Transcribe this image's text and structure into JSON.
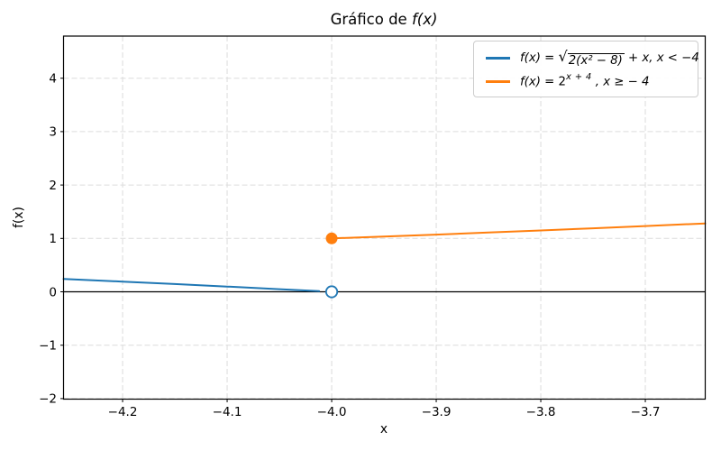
{
  "figure": {
    "title": {
      "prefix": "Gráfico de ",
      "math": "f(x)"
    },
    "xlabel": "x",
    "ylabel": "f(x)"
  },
  "chart_data": {
    "type": "line",
    "title": "Gráfico de f(x)",
    "xlabel": "x",
    "ylabel": "f(x)",
    "xlim": [
      -4.2565,
      -3.6427
    ],
    "ylim": [
      -2.01,
      4.789
    ],
    "grid": true,
    "grid_style": "dashed",
    "legend_position": "upper right",
    "xticks": {
      "values": [
        -4.2,
        -4.1,
        -4.0,
        -3.9,
        -3.8,
        -3.7
      ],
      "labels": [
        "−4.2",
        "−4.1",
        "−4.0",
        "−3.9",
        "−3.8",
        "−3.7"
      ]
    },
    "yticks": {
      "values": [
        -2,
        -1,
        0,
        1,
        2,
        3,
        4
      ],
      "labels": [
        "−2",
        "−1",
        "0",
        "1",
        "2",
        "3",
        "4"
      ]
    },
    "axhline_y": 0,
    "series": [
      {
        "name": "sqrt-branch",
        "label": "f(x) = √(2(x² − 8)) + x, x < −4",
        "color": "#1f77b4",
        "points": [
          [
            -4.2565,
            0.2419
          ],
          [
            -4.2,
            0.1909
          ],
          [
            -4.15,
            0.1448
          ],
          [
            -4.1,
            0.0976
          ],
          [
            -4.05,
            0.0494
          ],
          [
            -4.012,
            0.0119
          ]
        ]
      },
      {
        "name": "exp-branch",
        "label": "f(x) = 2^(x+4), x ≥ −4",
        "color": "#ff7f0e",
        "points": [
          [
            -4.0,
            1.0
          ],
          [
            -3.95,
            1.0353
          ],
          [
            -3.9,
            1.0718
          ],
          [
            -3.85,
            1.1096
          ],
          [
            -3.8,
            1.1487
          ],
          [
            -3.75,
            1.1892
          ],
          [
            -3.7,
            1.2311
          ],
          [
            -3.6427,
            1.2811
          ]
        ]
      }
    ],
    "markers": [
      {
        "x": -4.0,
        "y": 0.0,
        "style": "open",
        "color": "#1f77b4"
      },
      {
        "x": -4.0,
        "y": 1.0,
        "style": "filled",
        "color": "#ff7f0e"
      }
    ]
  },
  "legend": {
    "symbols": {
      "sqrt": "√"
    },
    "items": [
      {
        "color": "#1f77b4",
        "fx": "f(x) = ",
        "sqrt_radicand": "2(x² − 8)",
        "suffix": " + x,  x < −4"
      },
      {
        "color": "#ff7f0e",
        "fx": "f(x) = ",
        "base": "2",
        "exponent": "x + 4",
        "suffix": " , x ≥ − 4"
      }
    ]
  },
  "colors": {
    "blue": "#1f77b4",
    "orange": "#ff7f0e",
    "grid": "#dcdcdc",
    "axis": "#000000",
    "legend_border": "#cccccc"
  }
}
